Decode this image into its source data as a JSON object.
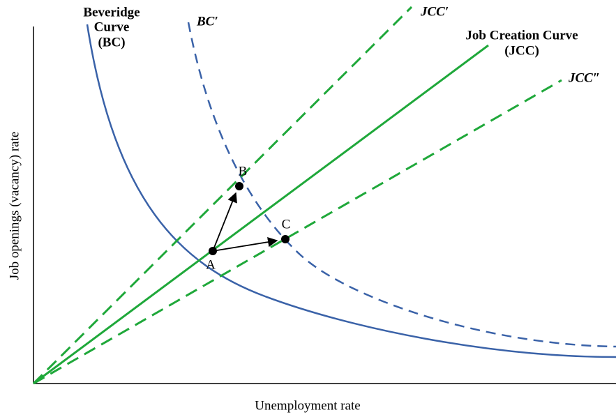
{
  "labels": {
    "beveridge": [
      "Beveridge",
      "Curve",
      "(BC)"
    ],
    "bc_prime": "BC′",
    "jcc_prime": "JCC′",
    "job_creation": [
      "Job Creation Curve",
      "(JCC)"
    ],
    "jcc_double_prime": "JCC″",
    "point_a": "A",
    "point_b": "B",
    "point_c": "C"
  },
  "axes": {
    "y_label": "Job openings (vacancy) rate",
    "x_label": "Unemployment rate"
  }
}
